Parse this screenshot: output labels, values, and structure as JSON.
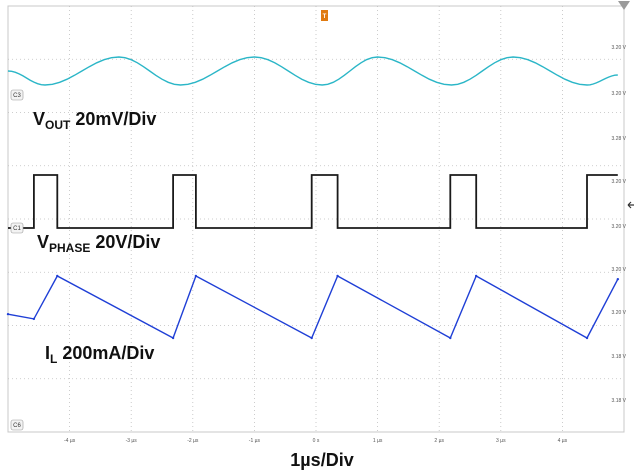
{
  "chart_data": {
    "type": "line",
    "xlabel": "1µs/Div",
    "x_ticks": [
      "-4 µs",
      "-3 µs",
      "-2 µs",
      "-1 µs",
      "0 s",
      "1 µs",
      "2 µs",
      "3 µs",
      "4 µs"
    ],
    "xlim": [
      -5,
      5
    ],
    "grid": true,
    "channel_markers": [
      "C3",
      "C1",
      "C6"
    ],
    "trigger_marker": "T",
    "series": [
      {
        "name": "VOUT",
        "label_main": "V",
        "label_sub": "OUT",
        "label_scale": " 20mV/Div",
        "color": "#2bb6c7",
        "right_ticks": [
          "3.20 V",
          "3.20 V"
        ],
        "x": [
          -5.0,
          -4.4,
          -3.2,
          -2.2,
          -1.0,
          0.1,
          1.0,
          2.2,
          3.2,
          4.4,
          4.9
        ],
        "y": [
          -0.3,
          -1.0,
          0.4,
          -1.0,
          0.4,
          -1.0,
          0.4,
          -1.0,
          0.4,
          -1.0,
          -0.5
        ]
      },
      {
        "name": "VPHASE",
        "label_main": "V",
        "label_sub": "PHASE",
        "label_scale": " 20V/Div",
        "color": "#1a1a1a",
        "right_ticks": [
          "3.28 V",
          "3.20 V",
          "3.20 V"
        ],
        "x": [
          -5.0,
          -4.58,
          -4.58,
          -4.2,
          -4.2,
          -2.32,
          -2.32,
          -1.95,
          -1.95,
          -0.07,
          -0.07,
          0.35,
          0.35,
          2.18,
          2.18,
          2.6,
          2.6,
          4.4,
          4.4,
          4.9
        ],
        "y": [
          0,
          0,
          1,
          1,
          0,
          0,
          1,
          1,
          0,
          0,
          1,
          1,
          0,
          0,
          1,
          1,
          0,
          0,
          1,
          1
        ]
      },
      {
        "name": "IL",
        "label_main": "I",
        "label_sub": "L",
        "label_scale": " 200mA/Div",
        "color": "#1f3fd6",
        "right_ticks": [
          "3.20 V",
          "3.20 V",
          "3.18 V",
          "3.18 V"
        ],
        "x": [
          -5.0,
          -4.58,
          -4.2,
          -2.32,
          -1.95,
          -0.07,
          0.35,
          2.18,
          2.6,
          4.4,
          4.9
        ],
        "y": [
          -0.2,
          -0.35,
          1.0,
          -0.95,
          1.0,
          -0.95,
          1.0,
          -0.95,
          1.0,
          -0.95,
          0.9
        ]
      }
    ]
  }
}
